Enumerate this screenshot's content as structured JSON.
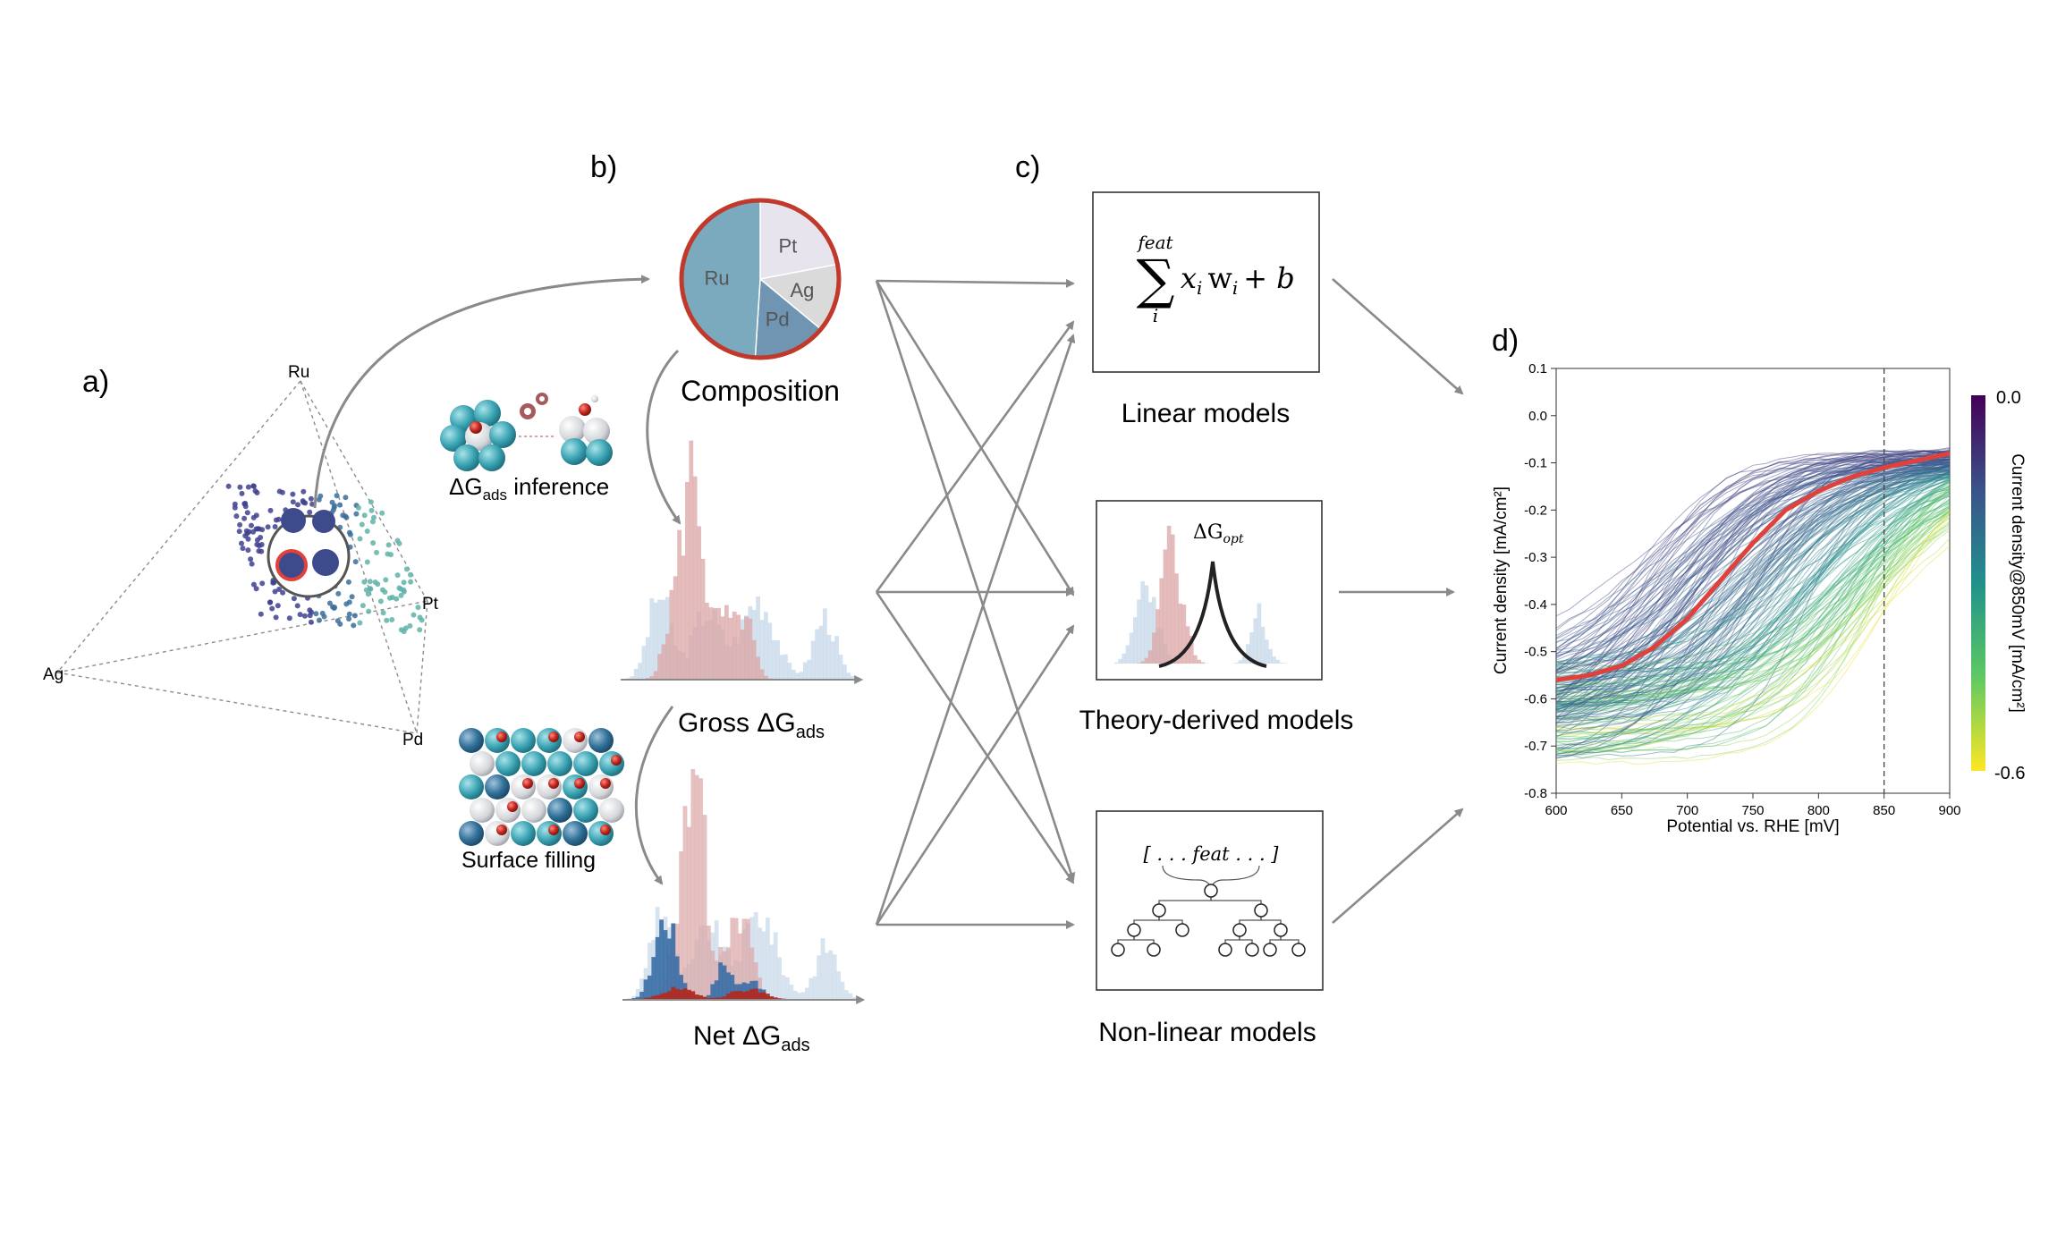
{
  "panels": {
    "a": "a)",
    "b": "b)",
    "c": "c)",
    "d": "d)"
  },
  "ternary": {
    "vertices": [
      "Ru",
      "Pt",
      "Ag",
      "Pd"
    ]
  },
  "composition": {
    "title": "Composition",
    "pie": [
      {
        "label": "Pt",
        "value": 0.22,
        "color": "#e7e4ee"
      },
      {
        "label": "Ag",
        "value": 0.14,
        "color": "#dadada"
      },
      {
        "label": "Pd",
        "value": 0.15,
        "color": "#6f95b2"
      },
      {
        "label": "Ru",
        "value": 0.49,
        "color": "#7ba9bd"
      }
    ]
  },
  "side_labels": {
    "inference_prefix": "ΔG",
    "inference_sub": "ads",
    "inference_suffix": " inference",
    "surface_filling": "Surface filling"
  },
  "hist_labels": {
    "gross_prefix": "Gross ΔG",
    "gross_sub": "ads",
    "net_prefix": "Net ΔG",
    "net_sub": "ads"
  },
  "models": {
    "linear": {
      "label": "Linear models",
      "sum_top": "feat",
      "sum_bottom": "i",
      "expr_x": "x",
      "expr_xi": "i",
      "expr_w": "w",
      "expr_wi": "i",
      "expr_tail": "+ b"
    },
    "theory": {
      "label": "Theory-derived models",
      "dg": "ΔG",
      "dg_sub": "opt"
    },
    "nonlinear": {
      "label": "Non-linear models",
      "feat": "[ . . . feat . . . ]"
    }
  },
  "chart_data": {
    "type": "line",
    "title": "",
    "xlabel": "Potential vs. RHE [mV]",
    "ylabel": "Current density [mA/cm²]",
    "xlim": [
      600,
      900
    ],
    "ylim": [
      -0.8,
      0.1
    ],
    "xticks": [
      "600",
      "650",
      "700",
      "750",
      "800",
      "850",
      "900"
    ],
    "yticks": [
      "0.1",
      "0.0",
      "-0.1",
      "-0.2",
      "-0.3",
      "-0.4",
      "-0.5",
      "-0.6",
      "-0.7",
      "-0.8"
    ],
    "reference_line_x": 850,
    "highlight_series": {
      "color": "#e0413a",
      "x": [
        600,
        625,
        650,
        675,
        700,
        725,
        750,
        775,
        800,
        825,
        850,
        875,
        900
      ],
      "y": [
        -0.56,
        -0.55,
        -0.53,
        -0.49,
        -0.43,
        -0.35,
        -0.27,
        -0.2,
        -0.16,
        -0.13,
        -0.11,
        -0.095,
        -0.08
      ]
    },
    "series_count_approx": 200,
    "colorbar": {
      "label": "Current density@850mV [mA/cm²]",
      "max_label": "0.0",
      "min_label": "-0.6",
      "range": [
        -0.6,
        0.0
      ],
      "colormap": "viridis"
    }
  }
}
